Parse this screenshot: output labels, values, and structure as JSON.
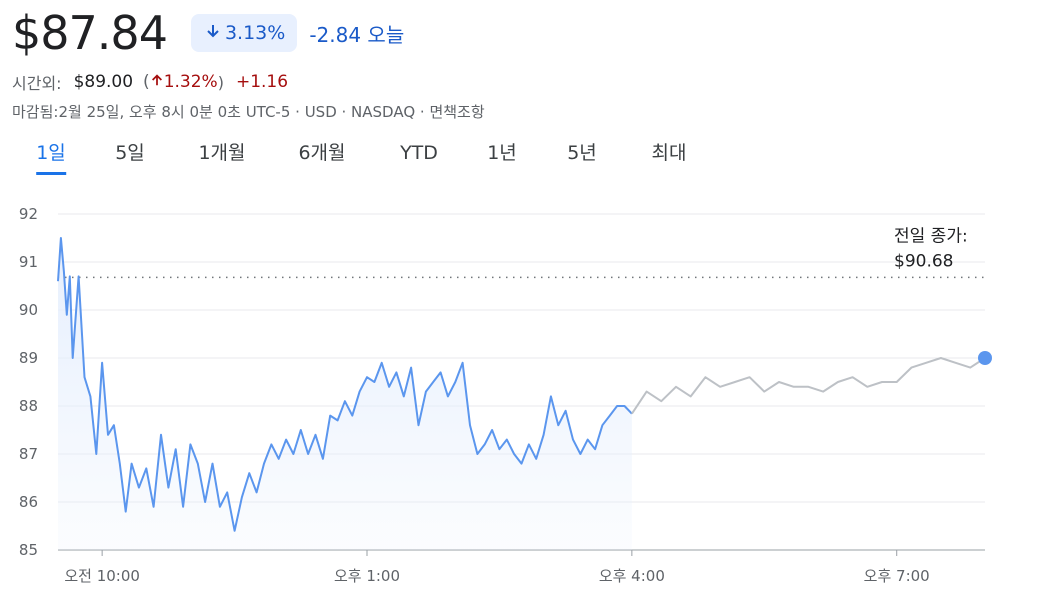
{
  "header": {
    "price": "$87.84",
    "change_pct": "3.13%",
    "change_abs": "-2.84 오늘"
  },
  "after_hours": {
    "label": "시간외:",
    "price": "$89.00",
    "open_paren": "(",
    "change_pct": "1.32%",
    "close_paren": ")",
    "change_abs": "+1.16"
  },
  "meta": "마감됨:2월 25일, 오후 8시 0분 0초 UTC-5 · USD · NASDAQ · 면책조항",
  "tabs": [
    {
      "label": "1일",
      "active": true
    },
    {
      "label": "5일",
      "active": false
    },
    {
      "label": "1개월",
      "active": false
    },
    {
      "label": "6개월",
      "active": false
    },
    {
      "label": "YTD",
      "active": false
    },
    {
      "label": "1년",
      "active": false
    },
    {
      "label": "5년",
      "active": false
    },
    {
      "label": "최대",
      "active": false
    }
  ],
  "colors": {
    "regular_line": "#5b96ee",
    "after_hours_line": "#bdc1c6",
    "area_fill": "#e6effd",
    "down": "#1a5ac8",
    "up": "#a50e0e",
    "active_tab": "#1a73e8"
  },
  "chart_data": {
    "type": "line",
    "ylim": [
      85,
      92
    ],
    "y_ticks": [
      "92",
      "91",
      "90",
      "89",
      "88",
      "87",
      "86",
      "85"
    ],
    "x_ticks": [
      "오전 10:00",
      "오후 1:00",
      "오후 4:00",
      "오후 7:00"
    ],
    "previous_close": 90.68,
    "previous_close_label": [
      "전일 종가:",
      "$90.68"
    ],
    "grid": true,
    "series": [
      {
        "segment": "regular",
        "x": [
          "09:30",
          "09:32",
          "09:34",
          "09:36",
          "09:38",
          "09:40",
          "09:44",
          "09:48",
          "09:52",
          "09:56",
          "10:00",
          "10:04",
          "10:08",
          "10:12",
          "10:16",
          "10:20",
          "10:25",
          "10:30",
          "10:35",
          "10:40",
          "10:45",
          "10:50",
          "10:55",
          "11:00",
          "11:05",
          "11:10",
          "11:15",
          "11:20",
          "11:25",
          "11:30",
          "11:35",
          "11:40",
          "11:45",
          "11:50",
          "11:55",
          "12:00",
          "12:05",
          "12:10",
          "12:15",
          "12:20",
          "12:25",
          "12:30",
          "12:35",
          "12:40",
          "12:45",
          "12:50",
          "12:55",
          "13:00",
          "13:05",
          "13:10",
          "13:15",
          "13:20",
          "13:25",
          "13:30",
          "13:35",
          "13:40",
          "13:45",
          "13:50",
          "13:55",
          "14:00",
          "14:05",
          "14:10",
          "14:15",
          "14:20",
          "14:25",
          "14:30",
          "14:35",
          "14:40",
          "14:45",
          "14:50",
          "14:55",
          "15:00",
          "15:05",
          "15:10",
          "15:15",
          "15:20",
          "15:25",
          "15:30",
          "15:35",
          "15:40",
          "15:45",
          "15:50",
          "15:55",
          "16:00"
        ],
        "values": [
          90.6,
          91.5,
          90.8,
          89.9,
          90.7,
          89.0,
          90.7,
          88.6,
          88.2,
          87.0,
          88.9,
          87.4,
          87.6,
          86.8,
          85.8,
          86.8,
          86.3,
          86.7,
          85.9,
          87.4,
          86.3,
          87.1,
          85.9,
          87.2,
          86.8,
          86.0,
          86.8,
          85.9,
          86.2,
          85.4,
          86.1,
          86.6,
          86.2,
          86.8,
          87.2,
          86.9,
          87.3,
          87.0,
          87.5,
          87.0,
          87.4,
          86.9,
          87.8,
          87.7,
          88.1,
          87.8,
          88.3,
          88.6,
          88.5,
          88.9,
          88.4,
          88.7,
          88.2,
          88.8,
          87.6,
          88.3,
          88.5,
          88.7,
          88.2,
          88.5,
          88.9,
          87.6,
          87.0,
          87.2,
          87.5,
          87.1,
          87.3,
          87.0,
          86.8,
          87.2,
          86.9,
          87.4,
          88.2,
          87.6,
          87.9,
          87.3,
          87.0,
          87.3,
          87.1,
          87.6,
          87.8,
          88.0,
          88.0,
          87.84
        ]
      },
      {
        "segment": "after_hours",
        "x": [
          "16:00",
          "16:10",
          "16:20",
          "16:30",
          "16:40",
          "16:50",
          "17:00",
          "17:10",
          "17:20",
          "17:30",
          "17:40",
          "17:50",
          "18:00",
          "18:10",
          "18:20",
          "18:30",
          "18:40",
          "18:50",
          "19:00",
          "19:10",
          "19:20",
          "19:30",
          "19:40",
          "19:50",
          "20:00"
        ],
        "values": [
          87.84,
          88.3,
          88.1,
          88.4,
          88.2,
          88.6,
          88.4,
          88.5,
          88.6,
          88.3,
          88.5,
          88.4,
          88.4,
          88.3,
          88.5,
          88.6,
          88.4,
          88.5,
          88.5,
          88.8,
          88.9,
          89.0,
          88.9,
          88.8,
          89.0
        ]
      }
    ]
  }
}
